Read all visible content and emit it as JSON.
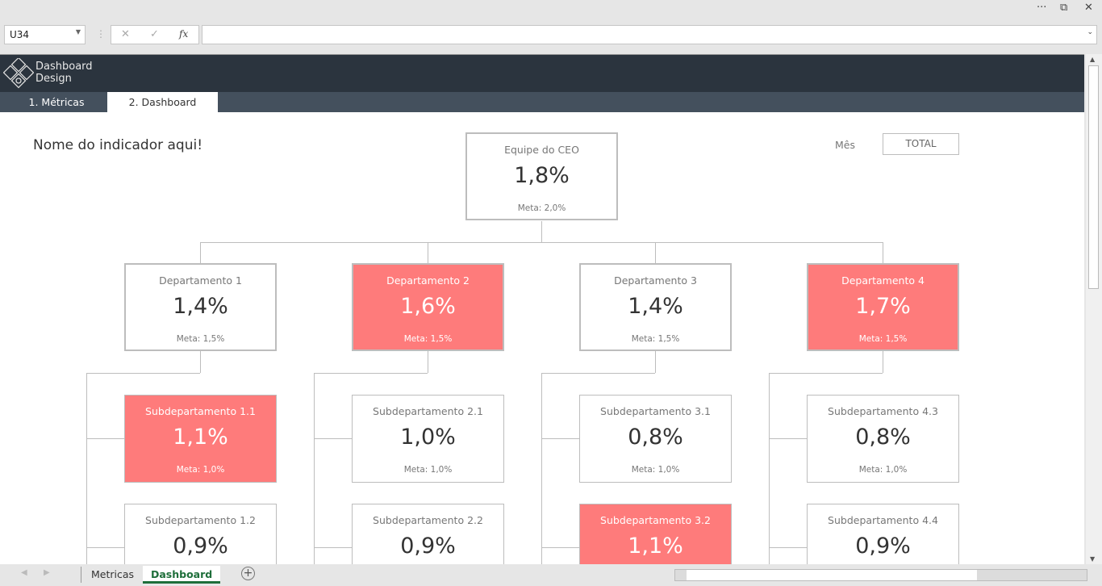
{
  "window": {
    "more": "···",
    "restore": "⧉",
    "close": "✕"
  },
  "formula_bar": {
    "name_box": "U34",
    "cancel": "✕",
    "enter": "✓",
    "fx": "fx",
    "formula": ""
  },
  "header": {
    "logo_line1": "Dashboard",
    "logo_line2": "Design"
  },
  "nav": {
    "tabs": [
      {
        "label": "1. Métricas"
      },
      {
        "label": "2. Dashboard"
      }
    ]
  },
  "page": {
    "title": "Nome do indicador aqui!",
    "month_label": "Mês",
    "month_value": "TOTAL"
  },
  "ceo": {
    "name": "Equipe do CEO",
    "value": "1,8%",
    "meta": "Meta: 2,0%",
    "highlight": false
  },
  "departments": [
    {
      "name": "Departamento 1",
      "value": "1,4%",
      "meta": "Meta: 1,5%",
      "highlight": false,
      "subs": [
        {
          "name": "Subdepartamento 1.1",
          "value": "1,1%",
          "meta": "Meta: 1,0%",
          "highlight": true
        },
        {
          "name": "Subdepartamento 1.2",
          "value": "0,9%",
          "highlight": false
        }
      ]
    },
    {
      "name": "Departamento 2",
      "value": "1,6%",
      "meta": "Meta: 1,5%",
      "highlight": true,
      "subs": [
        {
          "name": "Subdepartamento 2.1",
          "value": "1,0%",
          "meta": "Meta: 1,0%",
          "highlight": false
        },
        {
          "name": "Subdepartamento 2.2",
          "value": "0,9%",
          "highlight": false
        }
      ]
    },
    {
      "name": "Departamento 3",
      "value": "1,4%",
      "meta": "Meta: 1,5%",
      "highlight": false,
      "subs": [
        {
          "name": "Subdepartamento 3.1",
          "value": "0,8%",
          "meta": "Meta: 1,0%",
          "highlight": false
        },
        {
          "name": "Subdepartamento 3.2",
          "value": "1,1%",
          "highlight": true
        }
      ]
    },
    {
      "name": "Departamento 4",
      "value": "1,7%",
      "meta": "Meta: 1,5%",
      "highlight": true,
      "subs": [
        {
          "name": "Subdepartamento 4.3",
          "value": "0,8%",
          "meta": "Meta: 1,0%",
          "highlight": false
        },
        {
          "name": "Subdepartamento 4.4",
          "value": "0,9%",
          "highlight": false
        }
      ]
    }
  ],
  "sheet_tabs": [
    {
      "label": "Metricas"
    },
    {
      "label": "Dashboard"
    }
  ],
  "colors": {
    "header": "#2b343e",
    "nav": "#44505d",
    "highlight": "#fe7b7b",
    "active_tab": "#1e6e3a"
  }
}
